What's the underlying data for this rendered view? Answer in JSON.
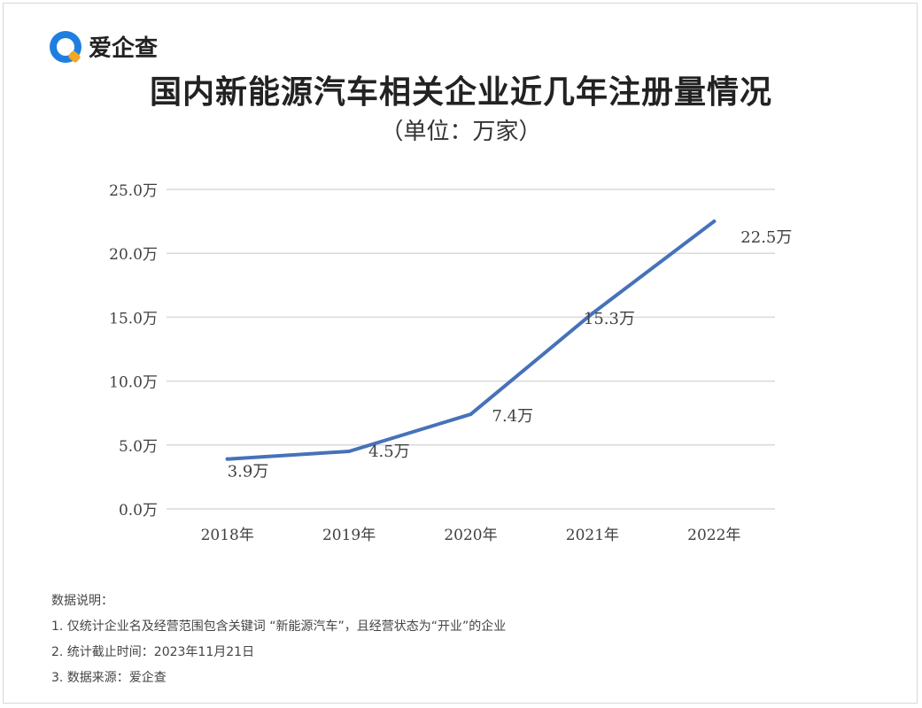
{
  "brand": {
    "name": "爱企查"
  },
  "chart_data": {
    "type": "line",
    "title": "国内新能源汽车相关企业近几年注册量情况",
    "subtitle": "（单位：万家）",
    "categories": [
      "2018年",
      "2019年",
      "2020年",
      "2021年",
      "2022年"
    ],
    "series": [
      {
        "values": [
          3.9,
          4.5,
          7.4,
          15.3,
          22.5
        ],
        "color": "#4672b8"
      }
    ],
    "data_labels": [
      "3.9万",
      "4.5万",
      "7.4万",
      "15.3万",
      "22.5万"
    ],
    "y_ticks": [
      "0.0万",
      "5.0万",
      "10.0万",
      "15.0万",
      "20.0万",
      "25.0万"
    ],
    "y_tick_values": [
      0,
      5,
      10,
      15,
      20,
      25
    ],
    "ylim": [
      0,
      25
    ],
    "grid": true,
    "legend": "none",
    "colors": {
      "line": "#4672b8",
      "grid": "#d9d9d9",
      "text": "#404040"
    }
  },
  "notes": {
    "heading": "数据说明：",
    "items": [
      "1. 仅统计企业名及经营范围包含关键词 “新能源汽车”，且经营状态为“开业”的企业",
      "2. 统计截止时间：2023年11月21日",
      "3. 数据来源：爱企查"
    ]
  }
}
